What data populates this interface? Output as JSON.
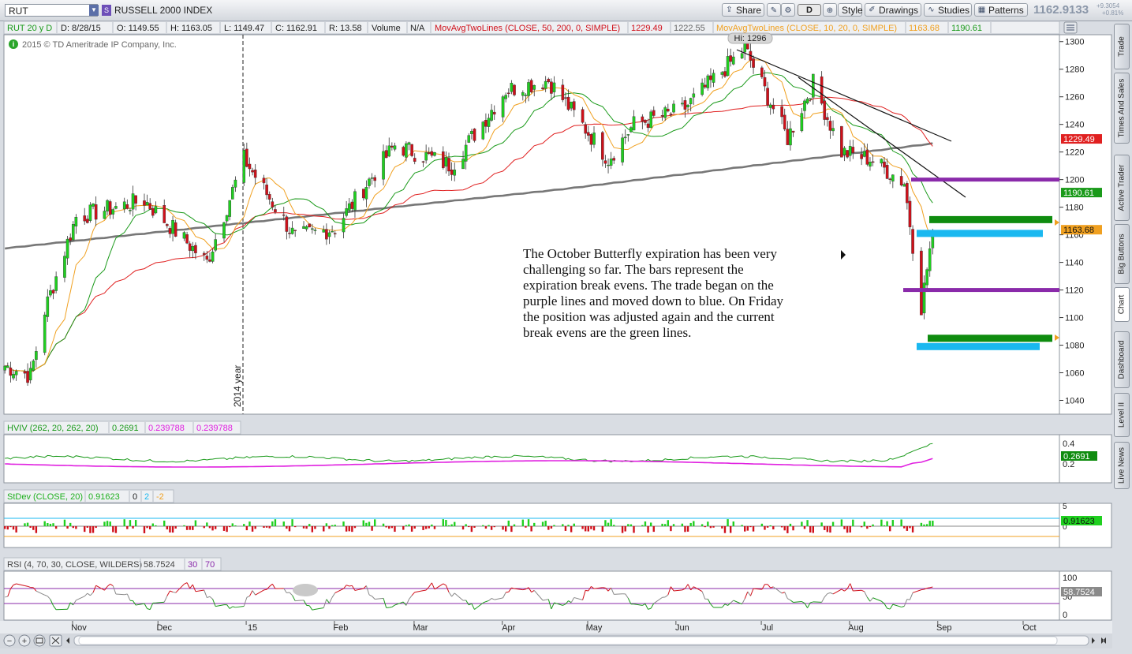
{
  "toolbar": {
    "symbol": "RUT",
    "symbol_badge": "S",
    "description": "RUSSELL 2000 INDEX",
    "share_label": "Share",
    "period_label": "D",
    "style_label": "Style",
    "drawings_label": "Drawings",
    "studies_label": "Studies",
    "patterns_label": "Patterns",
    "last_price": "1162.9133",
    "change_abs": "+9.3054",
    "change_pct": "+0.81%"
  },
  "header": {
    "timeframe": "RUT 20 y D",
    "date": "D: 8/28/15",
    "open": "O: 1149.55",
    "high": "H: 1163.05",
    "low": "L: 1149.47",
    "close": "C: 1162.91",
    "range": "R: 13.58",
    "volume_label": "Volume",
    "volume_value": "N/A",
    "ma1_label": "MovAvgTwoLines (CLOSE, 50, 200, 0, SIMPLE)",
    "ma1_v1": "1229.49",
    "ma1_v2": "1222.55",
    "ma2_label": "MovAvgTwoLines (CLOSE, 10, 20, 0, SIMPLE)",
    "ma2_v1": "1163.68",
    "ma2_v2": "1190.61"
  },
  "copyright": "2015 © TD Ameritrade IP Company, Inc.",
  "annotation": "The October Butterfly expiration has been very challenging so far.  The bars represent the expiration break evens.  The trade began on the purple lines and moved down to blue.  On Friday the position was adjusted again and the current break evens are the green lines.",
  "year_label": "2014 year",
  "hi_label": "Hi: 1296",
  "side_tabs": [
    "Trade",
    "Times And Sales",
    "Active Trader",
    "Big Buttons",
    "Chart",
    "Dashboard",
    "Level II",
    "Live News"
  ],
  "colors": {
    "up": "#1fd01f",
    "down": "#d0101a",
    "ma10": "#f0a020",
    "ma20": "#1a9a1a",
    "ma50": "#e02020",
    "ma200": "#777777",
    "purple": "#8a2aaa",
    "blue": "#1ab8f0",
    "green": "#0f8c0f"
  },
  "chart_data": [
    {
      "type": "candlestick",
      "ylim": [
        1030,
        1305
      ],
      "yticks": [
        1040,
        1060,
        1080,
        1100,
        1120,
        1140,
        1160,
        1180,
        1200,
        1220,
        1240,
        1260,
        1280,
        1300
      ],
      "xticks": [
        "Nov",
        "Dec",
        "15",
        "Feb",
        "Mar",
        "Apr",
        "May",
        "Jun",
        "Jul",
        "Aug",
        "Sep",
        "Oct"
      ],
      "price_tags": [
        {
          "label": "1229.49",
          "value": 1229.49,
          "color": "#e02020"
        },
        {
          "label": "1190.61",
          "value": 1190.61,
          "color": "#1a9a1a"
        },
        {
          "label": "1163.68",
          "value": 1163.68,
          "color": "#f0a020"
        }
      ],
      "break_evens": [
        {
          "name": "purple",
          "value": 1200,
          "color": "#8a2aaa"
        },
        {
          "name": "purple",
          "value": 1120,
          "color": "#8a2aaa"
        },
        {
          "name": "blue",
          "value": 1161,
          "color": "#1ab8f0"
        },
        {
          "name": "blue",
          "value": 1079,
          "color": "#1ab8f0"
        },
        {
          "name": "green",
          "value": 1171,
          "color": "#0f8c0f"
        },
        {
          "name": "green",
          "value": 1085,
          "color": "#0f8c0f"
        }
      ],
      "close_anchors": [
        {
          "date": "2014-10-06",
          "close": 1065
        },
        {
          "date": "2014-10-15",
          "close": 1058
        },
        {
          "date": "2014-10-20",
          "close": 1105
        },
        {
          "date": "2014-10-31",
          "close": 1173
        },
        {
          "date": "2014-11-24",
          "close": 1185
        },
        {
          "date": "2014-12-16",
          "close": 1140
        },
        {
          "date": "2014-12-29",
          "close": 1215
        },
        {
          "date": "2015-01-16",
          "close": 1158
        },
        {
          "date": "2015-01-30",
          "close": 1165
        },
        {
          "date": "2015-02-20",
          "close": 1225
        },
        {
          "date": "2015-03-12",
          "close": 1210
        },
        {
          "date": "2015-03-31",
          "close": 1265
        },
        {
          "date": "2015-04-15",
          "close": 1272
        },
        {
          "date": "2015-05-06",
          "close": 1215
        },
        {
          "date": "2015-05-15",
          "close": 1240
        },
        {
          "date": "2015-06-01",
          "close": 1250
        },
        {
          "date": "2015-06-23",
          "close": 1295
        },
        {
          "date": "2015-07-08",
          "close": 1230
        },
        {
          "date": "2015-07-17",
          "close": 1270
        },
        {
          "date": "2015-07-27",
          "close": 1220
        },
        {
          "date": "2015-08-06",
          "close": 1215
        },
        {
          "date": "2015-08-18",
          "close": 1198
        },
        {
          "date": "2015-08-24",
          "close": 1108
        },
        {
          "date": "2015-08-28",
          "close": 1162.91
        }
      ]
    },
    {
      "type": "line",
      "title": "HVIV (262, 20, 262, 20)",
      "series": [
        {
          "name": "HV",
          "value": "0.2691",
          "color": "#1a9a1a"
        },
        {
          "name": "IV",
          "value": "0.239788",
          "color": "#e020e0"
        },
        {
          "name": "IV",
          "value": "0.239788",
          "color": "#e020e0"
        }
      ],
      "yticks": [
        "0.4",
        "0.2"
      ],
      "last_tag": "0.2691"
    },
    {
      "type": "bar",
      "title": "StDev (CLOSE, 20)",
      "values_label": [
        "0.91623",
        "0",
        "2",
        "-2"
      ],
      "yticks": [
        "0",
        "5"
      ],
      "last_tag": "0.91623"
    },
    {
      "type": "line",
      "title": "RSI (4, 70, 30, CLOSE, WILDERS)",
      "values_label": [
        "58.7524",
        "30",
        "70"
      ],
      "yticks": [
        "100",
        "50",
        "0"
      ],
      "last_tag": "58.7524"
    }
  ]
}
